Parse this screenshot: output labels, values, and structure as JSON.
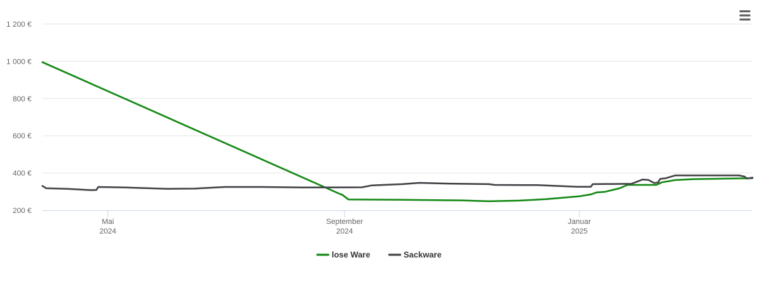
{
  "chart_data": {
    "type": "line",
    "title": "",
    "xlabel": "",
    "ylabel": "",
    "ylim": [
      200,
      1200
    ],
    "y_ticks": [
      {
        "value": 200,
        "label": "200 €"
      },
      {
        "value": 400,
        "label": "400 €"
      },
      {
        "value": 600,
        "label": "600 €"
      },
      {
        "value": 800,
        "label": "800 €"
      },
      {
        "value": 1000,
        "label": "1 000 €"
      },
      {
        "value": 1200,
        "label": "1 200 €"
      }
    ],
    "x_range": [
      "2024-03-28",
      "2025-04-01"
    ],
    "x_ticks": [
      {
        "date": "2024-05-01",
        "label": [
          "Mai",
          "2024"
        ]
      },
      {
        "date": "2024-09-01",
        "label": [
          "September",
          "2024"
        ]
      },
      {
        "date": "2025-01-01",
        "label": [
          "Januar",
          "2025"
        ]
      }
    ],
    "grid": true,
    "legend_position": "bottom-center",
    "series": [
      {
        "name": "lose Ware",
        "color": "#138813",
        "points": [
          [
            "2024-03-28",
            995
          ],
          [
            "2024-08-29",
            290
          ],
          [
            "2024-08-31",
            282
          ],
          [
            "2024-09-03",
            258
          ],
          [
            "2024-10-01",
            256
          ],
          [
            "2024-11-01",
            253
          ],
          [
            "2024-11-15",
            248
          ],
          [
            "2024-12-01",
            252
          ],
          [
            "2024-12-15",
            260
          ],
          [
            "2025-01-01",
            275
          ],
          [
            "2025-01-07",
            285
          ],
          [
            "2025-01-10",
            296
          ],
          [
            "2025-01-14",
            298
          ],
          [
            "2025-01-18",
            308
          ],
          [
            "2025-01-22",
            318
          ],
          [
            "2025-01-26",
            336
          ],
          [
            "2025-02-10",
            336
          ],
          [
            "2025-02-13",
            350
          ],
          [
            "2025-02-20",
            362
          ],
          [
            "2025-03-01",
            367
          ],
          [
            "2025-04-01",
            372
          ]
        ]
      },
      {
        "name": "Sackware",
        "color": "#434348",
        "points": [
          [
            "2024-03-28",
            330
          ],
          [
            "2024-03-30",
            318
          ],
          [
            "2024-04-10",
            315
          ],
          [
            "2024-04-22",
            308
          ],
          [
            "2024-04-25",
            309
          ],
          [
            "2024-04-26",
            325
          ],
          [
            "2024-05-10",
            322
          ],
          [
            "2024-06-01",
            315
          ],
          [
            "2024-06-15",
            316
          ],
          [
            "2024-07-01",
            325
          ],
          [
            "2024-07-20",
            325
          ],
          [
            "2024-08-10",
            322
          ],
          [
            "2024-09-10",
            323
          ],
          [
            "2024-09-15",
            333
          ],
          [
            "2024-10-01",
            340
          ],
          [
            "2024-10-10",
            347
          ],
          [
            "2024-10-25",
            343
          ],
          [
            "2024-11-15",
            340
          ],
          [
            "2024-11-18",
            336
          ],
          [
            "2024-12-10",
            335
          ],
          [
            "2024-12-31",
            326
          ],
          [
            "2025-01-07",
            326
          ],
          [
            "2025-01-08",
            340
          ],
          [
            "2025-01-28",
            342
          ],
          [
            "2025-02-03",
            365
          ],
          [
            "2025-02-06",
            362
          ],
          [
            "2025-02-09",
            346
          ],
          [
            "2025-02-11",
            350
          ],
          [
            "2025-02-12",
            368
          ],
          [
            "2025-02-15",
            372
          ],
          [
            "2025-02-20",
            387
          ],
          [
            "2025-03-25",
            387
          ],
          [
            "2025-03-28",
            380
          ],
          [
            "2025-03-29",
            370
          ],
          [
            "2025-04-01",
            375
          ]
        ]
      }
    ]
  },
  "ui": {
    "menu_icon": "hamburger-menu-icon"
  }
}
